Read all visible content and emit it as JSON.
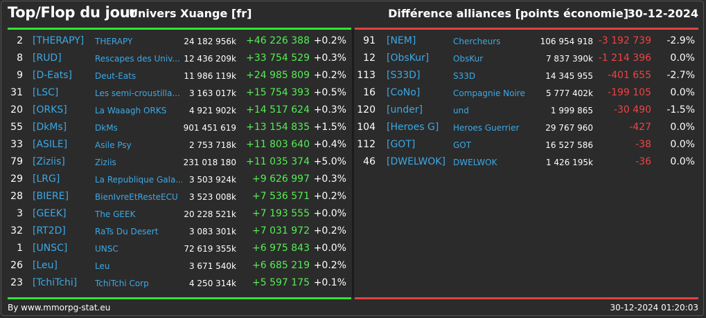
{
  "header": {
    "title": "Top/Flop du jour",
    "universe": "Univers Xuange [fr]",
    "metric": "Différence alliances [points économie]",
    "date": "30-12-2024"
  },
  "colors": {
    "gain": "#55ee55",
    "loss": "#ee4444",
    "tag": "#3ba9e6",
    "top_bar": "#33e433",
    "flop_bar": "#dd4444"
  },
  "top": [
    {
      "rank": "2",
      "tag": "[THERAPY]",
      "name": "THERAPY",
      "points": "24 182 956k",
      "diff": "+46 226 388",
      "pct": "+0.2%"
    },
    {
      "rank": "8",
      "tag": "[RUD]",
      "name": "Rescapes des Univ...",
      "points": "12 436 209k",
      "diff": "+33 754 529",
      "pct": "+0.3%"
    },
    {
      "rank": "9",
      "tag": "[D-Eats]",
      "name": "Deut-Eats",
      "points": "11 986 119k",
      "diff": "+24 985 809",
      "pct": "+0.2%"
    },
    {
      "rank": "31",
      "tag": "[LSC]",
      "name": "Les semi-croustilla...",
      "points": "3 163 017k",
      "diff": "+15 754 393",
      "pct": "+0.5%"
    },
    {
      "rank": "20",
      "tag": "[ORKS]",
      "name": "La Waaagh ORKS",
      "points": "4 921 902k",
      "diff": "+14 517 624",
      "pct": "+0.3%"
    },
    {
      "rank": "55",
      "tag": "[DkMs]",
      "name": "DkMs",
      "points": "901 451 619",
      "diff": "+13 154 835",
      "pct": "+1.5%"
    },
    {
      "rank": "33",
      "tag": "[ASILE]",
      "name": "Asile Psy",
      "points": "2 753 718k",
      "diff": "+11 803 640",
      "pct": "+0.4%"
    },
    {
      "rank": "79",
      "tag": "[Ziziis]",
      "name": "Ziziis",
      "points": "231 018 180",
      "diff": "+11 035 374",
      "pct": "+5.0%"
    },
    {
      "rank": "29",
      "tag": "[LRG]",
      "name": "La Republique Gala...",
      "points": "3 503 924k",
      "diff": "+9 626 997",
      "pct": "+0.3%"
    },
    {
      "rank": "28",
      "tag": "[BIERE]",
      "name": "BienIvreEtResteECU",
      "points": "3 523 008k",
      "diff": "+7 536 571",
      "pct": "+0.2%"
    },
    {
      "rank": "3",
      "tag": "[GEEK]",
      "name": "The GEEK",
      "points": "20 228 521k",
      "diff": "+7 193 555",
      "pct": "+0.0%"
    },
    {
      "rank": "32",
      "tag": "[RT2D]",
      "name": "RaTs Du Desert",
      "points": "3 083 301k",
      "diff": "+7 031 972",
      "pct": "+0.2%"
    },
    {
      "rank": "1",
      "tag": "[UNSC]",
      "name": "UNSC",
      "points": "72 619 355k",
      "diff": "+6 975 843",
      "pct": "+0.0%"
    },
    {
      "rank": "26",
      "tag": "[Leu]",
      "name": "Leu",
      "points": "3 671 540k",
      "diff": "+6 685 219",
      "pct": "+0.2%"
    },
    {
      "rank": "23",
      "tag": "[TchiTchi]",
      "name": "TchiTchi Corp",
      "points": "4 250 314k",
      "diff": "+5 597 175",
      "pct": "+0.1%"
    }
  ],
  "flop": [
    {
      "rank": "91",
      "tag": "[NEM]",
      "name": "Chercheurs",
      "points": "106 954 918",
      "diff": "-3 192 739",
      "pct": "-2.9%"
    },
    {
      "rank": "12",
      "tag": "[ObsKur]",
      "name": "ObsKur",
      "points": "7 837 390k",
      "diff": "-1 214 396",
      "pct": "0.0%"
    },
    {
      "rank": "113",
      "tag": "[S33D]",
      "name": "S33D",
      "points": "14 345 955",
      "diff": "-401 655",
      "pct": "-2.7%"
    },
    {
      "rank": "16",
      "tag": "[CoNo]",
      "name": "Compagnie Noire",
      "points": "5 777 402k",
      "diff": "-199 105",
      "pct": "0.0%"
    },
    {
      "rank": "120",
      "tag": "[under]",
      "name": "und",
      "points": "1 999 865",
      "diff": "-30 490",
      "pct": "-1.5%"
    },
    {
      "rank": "104",
      "tag": "[Heroes G]",
      "name": "Heroes Guerrier",
      "points": "29 767 960",
      "diff": "-427",
      "pct": "0.0%"
    },
    {
      "rank": "112",
      "tag": "[GOT]",
      "name": "GOT",
      "points": "16 527 586",
      "diff": "-38",
      "pct": "0.0%"
    },
    {
      "rank": "46",
      "tag": "[DWELWOK]",
      "name": "DWELWOK",
      "points": "1 426 195k",
      "diff": "-36",
      "pct": "0.0%"
    }
  ],
  "footer": {
    "source": "By www.mmorpg-stat.eu",
    "timestamp": "30-12-2024 01:20:03"
  }
}
